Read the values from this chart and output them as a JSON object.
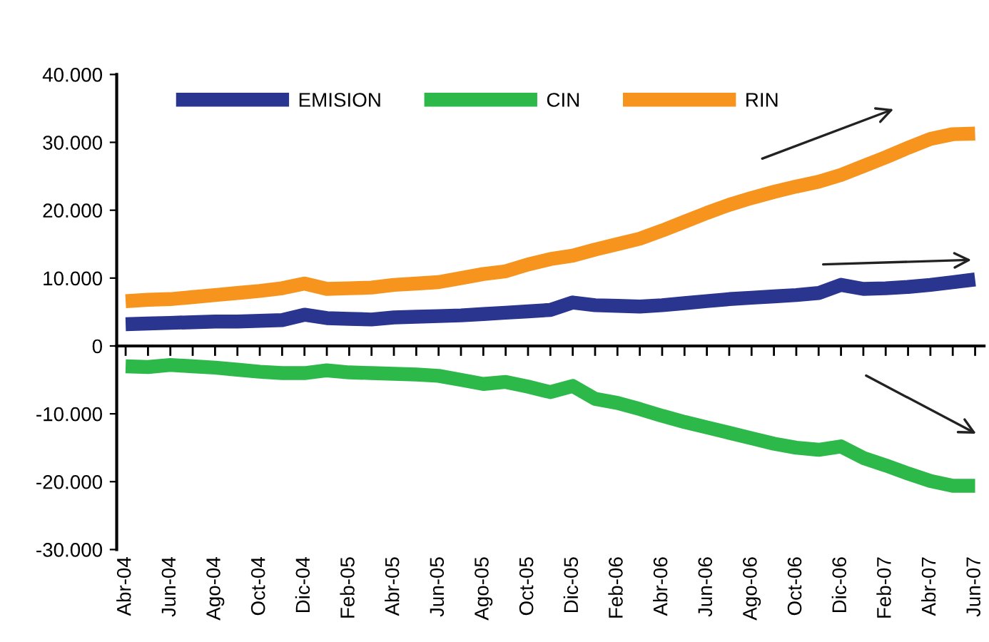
{
  "chart_data": {
    "type": "line",
    "categories": [
      "Abr-04",
      null,
      "Jun-04",
      null,
      "Ago-04",
      null,
      "Oct-04",
      null,
      "Dic-04",
      null,
      "Feb-05",
      null,
      "Abr-05",
      null,
      "Jun-05",
      null,
      "Ago-05",
      null,
      "Oct-05",
      null,
      "Dic-05",
      null,
      "Feb-06",
      null,
      "Abr-06",
      null,
      "Jun-06",
      null,
      "Ago-06",
      null,
      "Oct-06",
      null,
      "Dic-06",
      null,
      "Feb-07",
      null,
      "Abr-07",
      null,
      "Jun-07"
    ],
    "series": [
      {
        "name": "EMISION",
        "color": "#2a3590",
        "values": [
          3200,
          3300,
          3400,
          3500,
          3600,
          3600,
          3700,
          3800,
          4600,
          4100,
          4000,
          3900,
          4200,
          4300,
          4400,
          4500,
          4700,
          4900,
          5100,
          5300,
          6400,
          6000,
          5900,
          5800,
          6000,
          6300,
          6600,
          6900,
          7100,
          7300,
          7500,
          7800,
          9000,
          8400,
          8500,
          8700,
          9000,
          9400,
          9800
        ]
      },
      {
        "name": "CIN",
        "color": "#2db84a",
        "values": [
          -3000,
          -3100,
          -2800,
          -3000,
          -3200,
          -3500,
          -3800,
          -4000,
          -4000,
          -3600,
          -3900,
          -4000,
          -4100,
          -4200,
          -4400,
          -5000,
          -5600,
          -5300,
          -6000,
          -6800,
          -5900,
          -7800,
          -8400,
          -9300,
          -10300,
          -11200,
          -12000,
          -12800,
          -13600,
          -14400,
          -15000,
          -15300,
          -14800,
          -16500,
          -17600,
          -18800,
          -19900,
          -20600,
          -20600
        ]
      },
      {
        "name": "RIN",
        "color": "#f7941d",
        "values": [
          6600,
          6800,
          6900,
          7200,
          7500,
          7800,
          8100,
          8500,
          9200,
          8400,
          8500,
          8600,
          9000,
          9200,
          9400,
          10000,
          10600,
          11000,
          12000,
          12800,
          13300,
          14200,
          15000,
          15800,
          17000,
          18300,
          19600,
          20800,
          21800,
          22700,
          23500,
          24200,
          25200,
          26500,
          27800,
          29200,
          30500,
          31200,
          31300
        ]
      }
    ],
    "ylim": [
      -30000,
      40000
    ],
    "yticks": [
      {
        "value": -30000,
        "label": "-30.000"
      },
      {
        "value": -20000,
        "label": "-20.000"
      },
      {
        "value": -10000,
        "label": "-10.000"
      },
      0,
      {
        "value": 10000,
        "label": "10.000"
      },
      {
        "value": 20000,
        "label": "20.000"
      },
      {
        "value": 30000,
        "label": "30.000"
      },
      {
        "value": 40000,
        "label": "40.000"
      }
    ],
    "legend": "top",
    "marker": "none",
    "line_style": "solid"
  }
}
